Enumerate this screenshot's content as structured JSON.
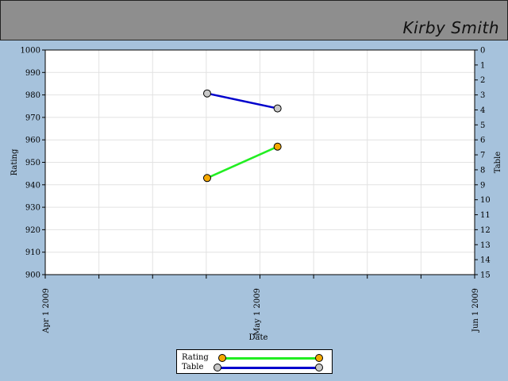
{
  "header": {
    "title": "Kirby Smith"
  },
  "colors": {
    "rating_line": "#22ee22",
    "rating_marker": "#f5a800",
    "table_line": "#0000cc",
    "table_marker": "#c8c8c8"
  },
  "chart_data": {
    "type": "line",
    "xlabel": "Date",
    "ylabel": "Rating",
    "y2label": "Table",
    "ylim": [
      900,
      1000
    ],
    "y2lim": [
      0,
      15
    ],
    "y2_inverted": true,
    "grid": true,
    "legend_position": "bottom-center",
    "x_ticks": [
      "Apr 1 2009",
      "May 1 2009",
      "Jun 1 2009"
    ],
    "y_ticks": [
      "1000",
      "990",
      "980",
      "970",
      "960",
      "950",
      "940",
      "930",
      "920",
      "910",
      "900"
    ],
    "y2_ticks": [
      "0",
      "1",
      "2",
      "3",
      "4",
      "5",
      "6",
      "7",
      "8",
      "9",
      "10",
      "11",
      "12",
      "13",
      "14",
      "15"
    ],
    "series": [
      {
        "name": "Rating",
        "axis": "left",
        "x": [
          "2009-04-24",
          "2009-05-04"
        ],
        "y": [
          943,
          957
        ]
      },
      {
        "name": "Table",
        "axis": "right",
        "x": [
          "2009-04-24",
          "2009-05-04"
        ],
        "y": [
          2.9,
          3.9
        ]
      }
    ]
  }
}
